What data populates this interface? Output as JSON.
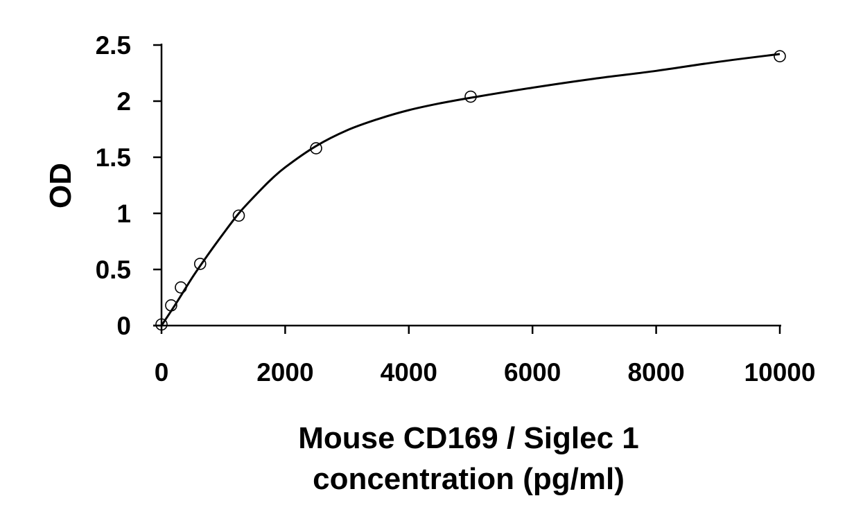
{
  "chart_data": {
    "type": "scatter",
    "xlabel": "Mouse CD169 / Siglec 1 concentration (pg/ml)",
    "xlabel_lines": [
      "Mouse CD169 / Siglec 1",
      "concentration (pg/ml)"
    ],
    "ylabel": "OD",
    "xlim": [
      0,
      10000
    ],
    "ylim": [
      0,
      2.5
    ],
    "x_ticks": [
      0,
      2000,
      4000,
      6000,
      8000,
      10000
    ],
    "x_tick_labels": [
      "0",
      "2000",
      "4000",
      "6000",
      "8000",
      "10000"
    ],
    "y_ticks": [
      0,
      0.5,
      1,
      1.5,
      2,
      2.5
    ],
    "y_tick_labels": [
      "0",
      "0.5",
      "1",
      "1.5",
      "2",
      "2.5"
    ],
    "grid": false,
    "legend": "none",
    "series": [
      {
        "points": [
          {
            "x": 0,
            "y": 0.01
          },
          {
            "x": 156,
            "y": 0.18
          },
          {
            "x": 313,
            "y": 0.34
          },
          {
            "x": 625,
            "y": 0.55
          },
          {
            "x": 1250,
            "y": 0.98
          },
          {
            "x": 2500,
            "y": 1.58
          },
          {
            "x": 5000,
            "y": 2.04
          },
          {
            "x": 10000,
            "y": 2.4
          }
        ],
        "fit_curve": [
          [
            0,
            0.0
          ],
          [
            250,
            0.21
          ],
          [
            500,
            0.43
          ],
          [
            750,
            0.63
          ],
          [
            1000,
            0.82
          ],
          [
            1250,
            1.0
          ],
          [
            1500,
            1.15
          ],
          [
            1750,
            1.29
          ],
          [
            2000,
            1.41
          ],
          [
            2500,
            1.6
          ],
          [
            3000,
            1.74
          ],
          [
            3500,
            1.84
          ],
          [
            4000,
            1.92
          ],
          [
            4500,
            1.98
          ],
          [
            5000,
            2.03
          ],
          [
            6000,
            2.12
          ],
          [
            7000,
            2.2
          ],
          [
            8000,
            2.27
          ],
          [
            9000,
            2.35
          ],
          [
            10000,
            2.42
          ]
        ],
        "marker": "open-circle",
        "color": "#000000"
      }
    ]
  }
}
